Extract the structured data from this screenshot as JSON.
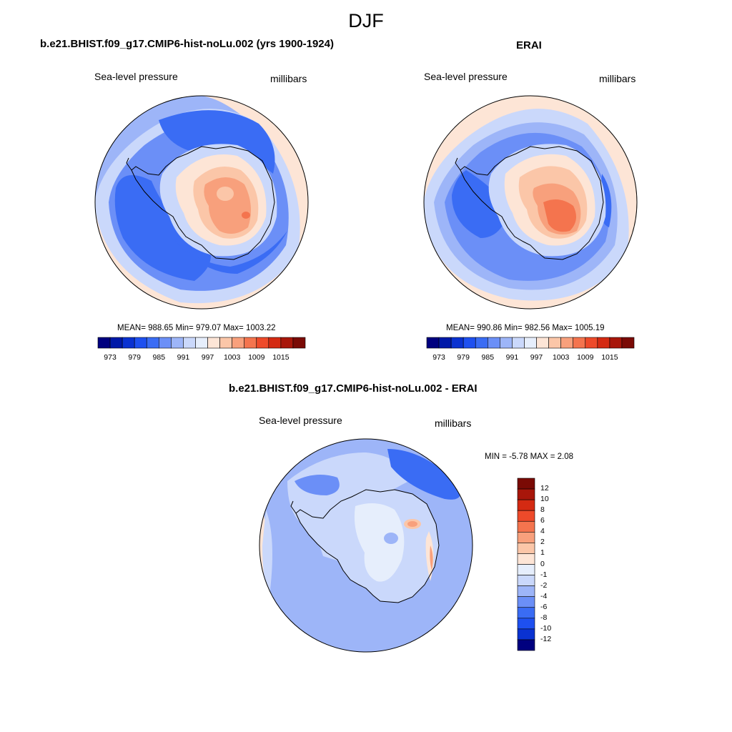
{
  "main_title": "DJF",
  "panels": [
    {
      "title": "b.e21.BHIST.f09_g17.CMIP6-hist-noLu.002 (yrs 1900-1924)",
      "variable": "Sea-level pressure",
      "units": "millibars",
      "stats": "MEAN= 988.65  Min= 979.07  Max= 1003.22"
    },
    {
      "title": "ERAI",
      "variable": "Sea-level pressure",
      "units": "millibars",
      "stats": "MEAN= 990.86  Min= 982.56  Max= 1005.19"
    },
    {
      "title": "b.e21.BHIST.f09_g17.CMIP6-hist-noLu.002 - ERAI",
      "variable": "Sea-level pressure",
      "units": "millibars",
      "stats": "MIN =  -5.78 MAX =   2.08"
    }
  ],
  "abs_colorbar": {
    "labels": [
      "973",
      "979",
      "985",
      "991",
      "997",
      "1003",
      "1009",
      "1015"
    ],
    "colors": [
      "#00007f",
      "#0019a8",
      "#0a32d1",
      "#1e50f0",
      "#3a6cf4",
      "#6b8ff7",
      "#9db5f8",
      "#cad8fb",
      "#e6eefc",
      "#fde5d6",
      "#fbc6a8",
      "#f8a07c",
      "#f4744e",
      "#ee4a2a",
      "#d42a12",
      "#a8160a",
      "#7a0a05"
    ]
  },
  "diff_colorbar": {
    "labels": [
      "12",
      "10",
      "8",
      "6",
      "4",
      "2",
      "1",
      "0",
      "-1",
      "-2",
      "-4",
      "-6",
      "-8",
      "-10",
      "-12"
    ],
    "colors": [
      "#7a0a05",
      "#a8160a",
      "#d42a12",
      "#ee4a2a",
      "#f4744e",
      "#f8a07c",
      "#fbc6a8",
      "#fde5d6",
      "#e6eefc",
      "#cad8fb",
      "#9db5f8",
      "#6b8ff7",
      "#3a6cf4",
      "#1e50f0",
      "#0a32d1",
      "#00007f"
    ]
  }
}
